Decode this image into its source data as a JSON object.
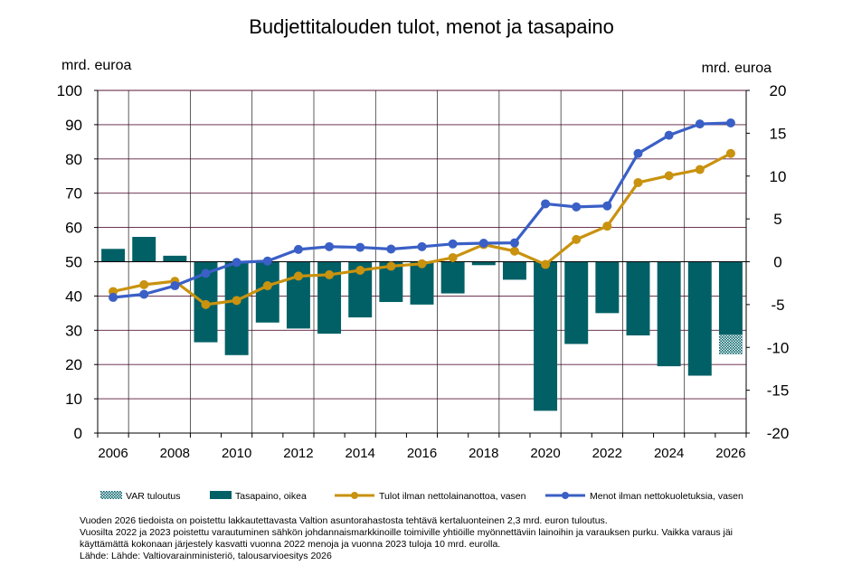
{
  "chart_data": {
    "type": "bar+line",
    "title": "Budjettitalouden tulot, menot ja tasapaino",
    "ylabel_left": "mrd. euroa",
    "ylabel_right": "mrd. euroa",
    "ylim_left": [
      0,
      100
    ],
    "ylim_right": [
      -20,
      20
    ],
    "yticks_left": [
      "0",
      "10",
      "20",
      "30",
      "40",
      "50",
      "60",
      "70",
      "80",
      "90",
      "100"
    ],
    "yticks_right": [
      "-20",
      "-15",
      "-10",
      "-5",
      "0",
      "5",
      "10",
      "15",
      "20"
    ],
    "x": [
      2006,
      2007,
      2008,
      2009,
      2010,
      2011,
      2012,
      2013,
      2014,
      2015,
      2016,
      2017,
      2018,
      2019,
      2020,
      2021,
      2022,
      2023,
      2024,
      2025,
      2026
    ],
    "xtick_labels": [
      "2006",
      "2008",
      "2010",
      "2012",
      "2014",
      "2016",
      "2018",
      "2020",
      "2022",
      "2024",
      "2026"
    ],
    "grid": true,
    "legend_position": "bottom",
    "series": [
      {
        "name": "VAR tuloutus",
        "type": "bar",
        "axis": "right",
        "color": "#006066",
        "pattern": "dotted",
        "values": [
          null,
          null,
          null,
          null,
          null,
          null,
          null,
          null,
          null,
          null,
          null,
          null,
          null,
          null,
          null,
          null,
          null,
          null,
          null,
          null,
          -2.3
        ]
      },
      {
        "name": "Tasapaino, oikea",
        "type": "bar",
        "axis": "right",
        "color": "#006066",
        "values": [
          1.5,
          2.9,
          0.7,
          -9.4,
          -10.9,
          -7.1,
          -7.8,
          -8.4,
          -6.5,
          -4.7,
          -5.0,
          -3.7,
          -0.4,
          -2.1,
          -17.4,
          -9.6,
          -6.0,
          -8.6,
          -12.2,
          -13.3,
          -8.5
        ]
      },
      {
        "name": "Tulot ilman nettolainanottoa, vasen",
        "type": "line",
        "axis": "left",
        "color": "#C9920F",
        "values": [
          41.3,
          43.3,
          44.3,
          37.5,
          38.7,
          43.0,
          45.8,
          46.2,
          47.5,
          48.7,
          49.4,
          51.2,
          55.0,
          53.1,
          49.2,
          56.5,
          60.4,
          73.1,
          75.1,
          76.9,
          81.6
        ]
      },
      {
        "name": "Menot ilman nettokuoletuksia, vasen",
        "type": "line",
        "axis": "left",
        "color": "#3A5FC6",
        "values": [
          39.6,
          40.5,
          43.0,
          46.6,
          49.8,
          50.2,
          53.6,
          54.4,
          54.2,
          53.7,
          54.4,
          55.2,
          55.4,
          55.5,
          66.9,
          66.0,
          66.3,
          81.6,
          86.9,
          90.2,
          90.5
        ]
      }
    ]
  },
  "footnotes": [
    "Vuoden 2026 tiedoista on poistettu lakkautettavasta Valtion asuntorahastosta tehtävä kertaluonteinen 2,3 mrd. euron tuloutus.",
    "Vuosilta 2022 ja 2023 poistettu varautuminen sähkön johdannaismarkkinoille toimiville yhtiöille myönnettäviin lainoihin ja varauksen purku. Vaikka varaus jäi",
    "käyttämättä kokonaan järjestely kasvatti vuonna 2022 menoja ja vuonna 2023 tuloja 10 mrd. eurolla.",
    "Lähde: Lähde: Valtiovarainministeriö, talousarvioesitys 2026"
  ]
}
